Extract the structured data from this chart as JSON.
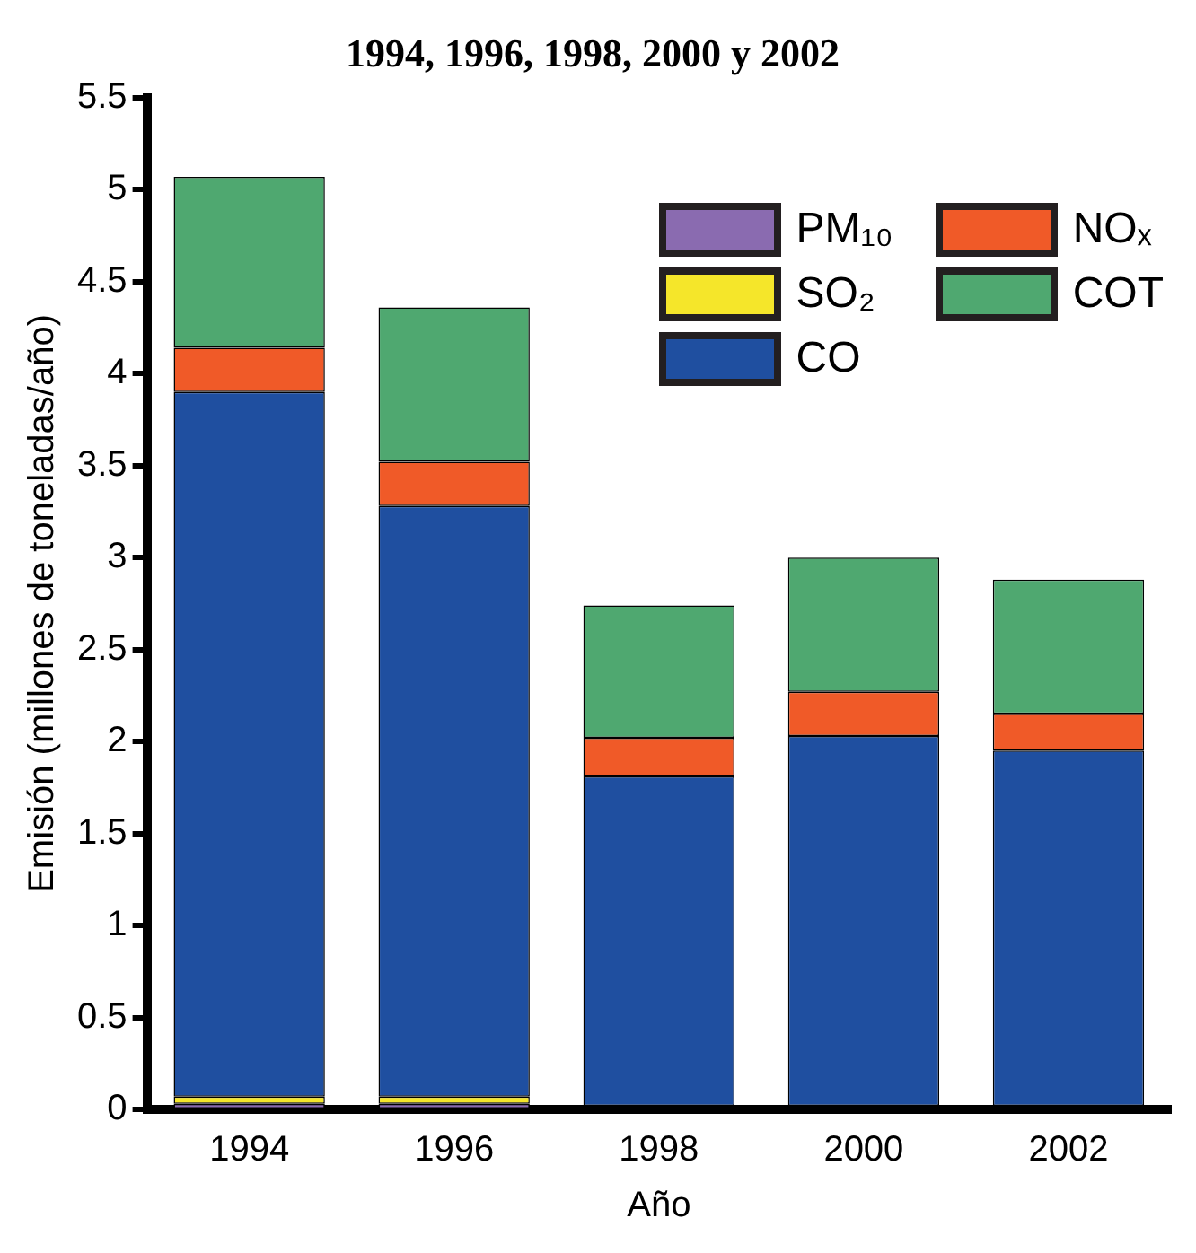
{
  "chart_data": {
    "type": "bar",
    "title": "1994, 1996, 1998, 2000 y 2002",
    "xlabel": "Año",
    "ylabel": "Emisión (millones de toneladas/año)",
    "categories": [
      "1994",
      "1996",
      "1998",
      "2000",
      "2002"
    ],
    "stacked": true,
    "series": [
      {
        "name": "PM₁₀",
        "color": "#8a6bb0",
        "values": [
          0.03,
          0.03,
          0.01,
          0.01,
          0.01
        ]
      },
      {
        "name": "SO₂",
        "color": "#f5e62a",
        "values": [
          0.04,
          0.04,
          0.01,
          0.01,
          0.01
        ]
      },
      {
        "name": "CO",
        "color": "#1f4fa0",
        "values": [
          3.83,
          3.21,
          1.79,
          2.01,
          1.93
        ]
      },
      {
        "name": "NOₓ",
        "color": "#f05a28",
        "values": [
          0.24,
          0.24,
          0.21,
          0.24,
          0.2
        ]
      },
      {
        "name": "COT",
        "color": "#4fa870",
        "values": [
          0.93,
          0.84,
          0.72,
          0.73,
          0.73
        ]
      }
    ],
    "ylim": [
      0,
      5.5
    ],
    "yticks": [
      0,
      0.5,
      1,
      1.5,
      2,
      2.5,
      3,
      3.5,
      4,
      4.5,
      5,
      5.5
    ],
    "grid": false,
    "legend": "top right"
  }
}
